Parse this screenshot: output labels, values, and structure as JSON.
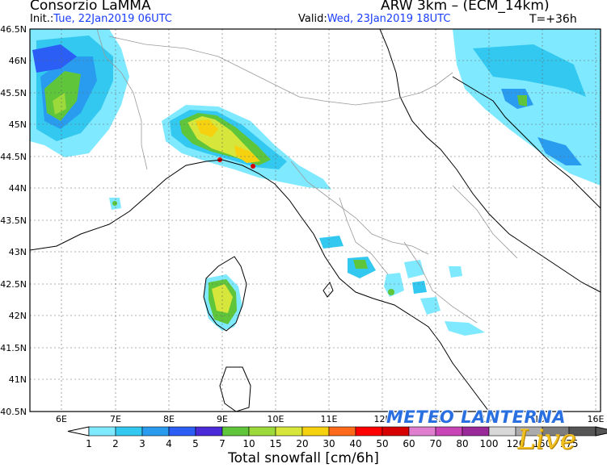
{
  "header": {
    "organization": "Consorzio LaMMA",
    "model": "ARW 3km – (ECM_14km)",
    "init_label": "Init.:",
    "init_value": "Tue, 22Jan2019 06UTC",
    "valid_label": "Valid:",
    "valid_value": "Wed, 23Jan2019 18UTC",
    "forecast_step": "T=+36h"
  },
  "axes": {
    "lat_ticks": [
      "46.5N",
      "46N",
      "45.5N",
      "45N",
      "44.5N",
      "44N",
      "43.5N",
      "43N",
      "42.5N",
      "42N",
      "41.5N",
      "41N",
      "40.5N"
    ],
    "lon_ticks": [
      "6E",
      "7E",
      "8E",
      "9E",
      "10E",
      "11E",
      "12E",
      "13E",
      "14E",
      "15E",
      "16E"
    ]
  },
  "colorbar": {
    "title": "Total snowfall [cm/6h]",
    "levels": [
      "1",
      "2",
      "3",
      "4",
      "5",
      "7",
      "10",
      "15",
      "20",
      "30",
      "40",
      "50",
      "60",
      "70",
      "80",
      "100",
      "120",
      "150",
      "175"
    ],
    "colors": [
      "#7fe9ff",
      "#33c8f0",
      "#2a9cf0",
      "#2a5ef5",
      "#4b2ad8",
      "#5fc53a",
      "#9cd93a",
      "#d7e63a",
      "#f5d10f",
      "#ff6a1a",
      "#ff0000",
      "#d70000",
      "#e07fd0",
      "#c944b6",
      "#9a2a9a",
      "#d8d8d8",
      "#ababab",
      "#7d7d7d",
      "#555555"
    ]
  },
  "logo": {
    "text": "METEO LANTERNA",
    "script": "Live"
  }
}
